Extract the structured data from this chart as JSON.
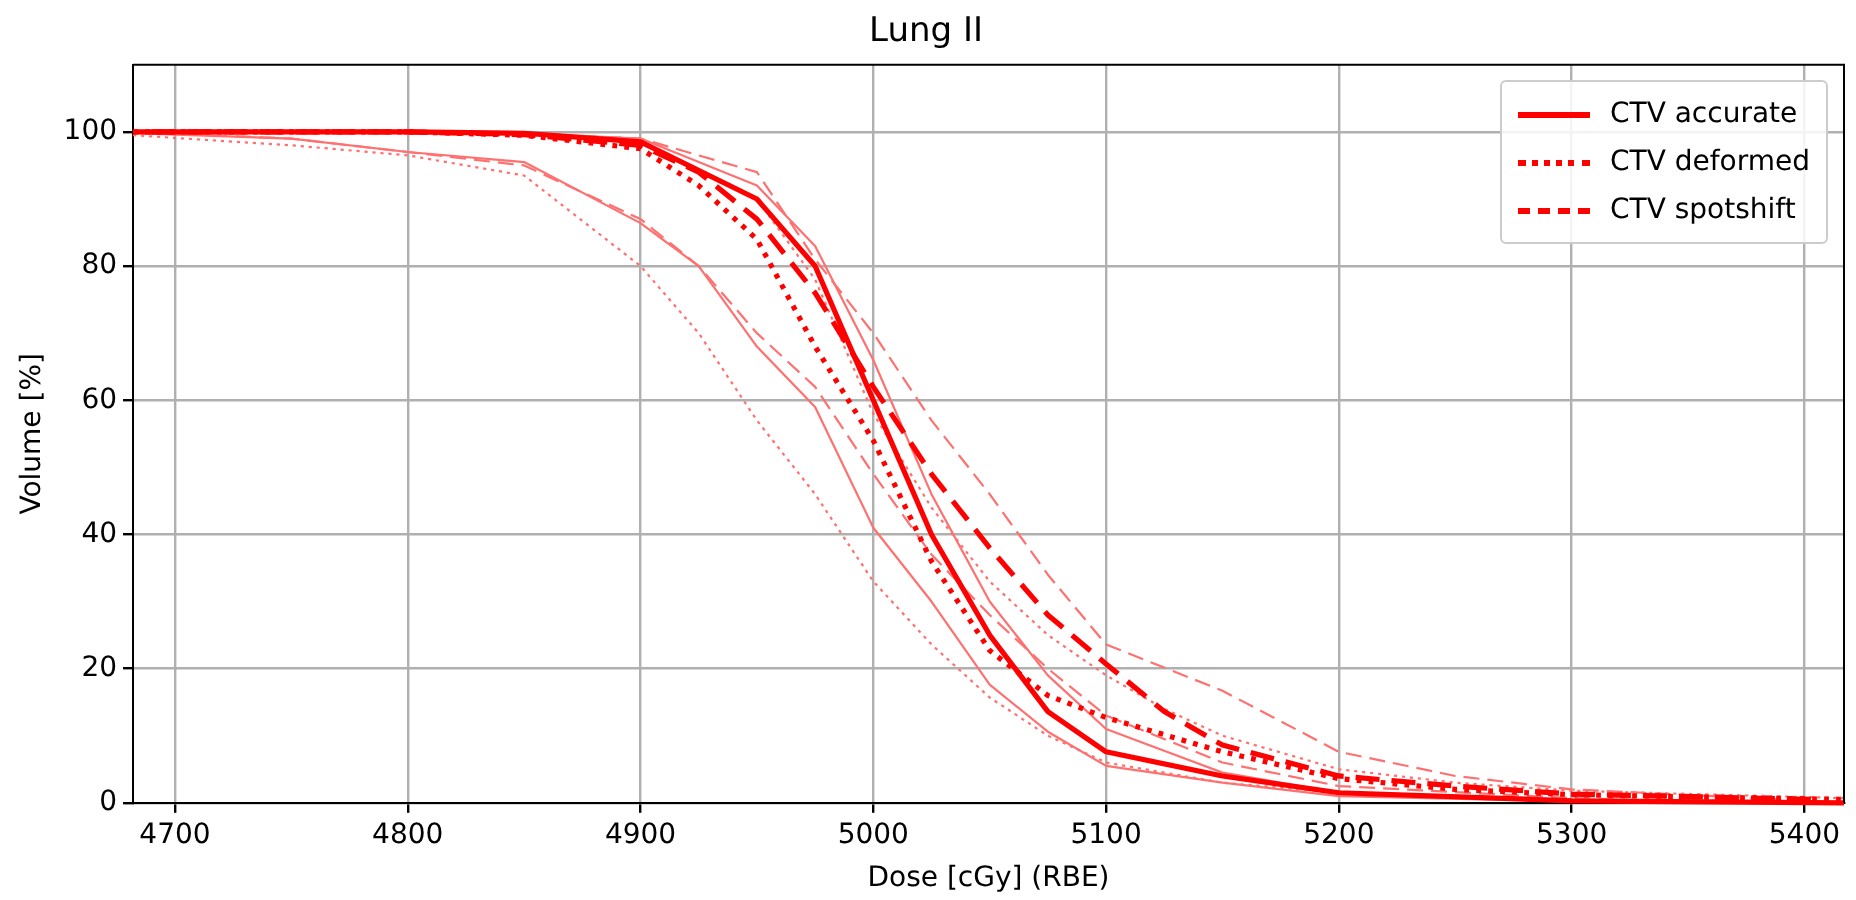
{
  "chart_data": {
    "type": "line",
    "title": "Lung II",
    "xlabel": "Dose [cGy] (RBE)",
    "ylabel": "Volume [%]",
    "xlim": [
      4682,
      5417
    ],
    "ylim": [
      0,
      110
    ],
    "xticks": [
      4700,
      4800,
      4900,
      5000,
      5100,
      5200,
      5300,
      5400
    ],
    "yticks": [
      0,
      20,
      40,
      60,
      80,
      100
    ],
    "grid": true,
    "legend": "top right",
    "marker": "none",
    "series": [
      {
        "name": "CTV accurate",
        "color": "#ff0000",
        "line_style": "solid",
        "x": [
          4682,
          4800,
          4850,
          4900,
          4950,
          4975,
          5000,
          5025,
          5050,
          5075,
          5100,
          5150,
          5200,
          5300,
          5417
        ],
        "values": [
          100,
          100,
          99.8,
          98.5,
          90,
          80,
          60,
          40,
          25,
          13.6,
          7.6,
          4,
          1.5,
          0.3,
          0
        ]
      },
      {
        "name": "CTV deformed",
        "color": "#ff0000",
        "line_style": "dotted",
        "x": [
          4682,
          4800,
          4850,
          4900,
          4925,
          4950,
          4975,
          5000,
          5025,
          5050,
          5075,
          5100,
          5150,
          5200,
          5250,
          5300,
          5417
        ],
        "values": [
          100,
          100,
          99.5,
          97.5,
          92,
          84,
          68,
          54,
          36,
          22.7,
          16,
          12.7,
          7.6,
          3.6,
          2,
          1.2,
          0.5
        ]
      },
      {
        "name": "CTV spotshift",
        "color": "#ff0000",
        "line_style": "dashed",
        "x": [
          4690,
          4800,
          4850,
          4900,
          4925,
          4950,
          4975,
          5000,
          5025,
          5050,
          5075,
          5100,
          5125,
          5150,
          5200,
          5250,
          5300,
          5405
        ],
        "values": [
          100,
          100,
          99.6,
          98,
          94,
          87,
          76,
          62,
          49,
          38,
          28,
          20.7,
          13.6,
          8.6,
          4,
          2.5,
          1.3,
          0.5
        ]
      },
      {
        "color": "#ff7070",
        "line_style": "solid",
        "x": [
          4700,
          4800,
          4850,
          4900,
          4950,
          4975,
          5000,
          5025,
          5050,
          5075,
          5100,
          5150,
          5200,
          5300,
          5380
        ],
        "values": [
          100,
          100,
          99.8,
          99,
          92,
          83,
          66,
          46,
          30,
          19,
          11,
          4.5,
          1.5,
          0.3,
          0
        ]
      },
      {
        "color": "#ff7070",
        "line_style": "solid",
        "x": [
          4682,
          4750,
          4800,
          4850,
          4900,
          4925,
          4950,
          4975,
          5000,
          5025,
          5050,
          5075,
          5100,
          5150,
          5200,
          5300,
          5350
        ],
        "values": [
          99.8,
          99,
          97,
          95.5,
          86.4,
          80,
          68,
          59,
          41,
          30,
          17.6,
          10.6,
          5.5,
          3,
          1,
          0.2,
          0
        ]
      },
      {
        "color": "#ff7070",
        "line_style": "dotted",
        "x": [
          4682,
          4750,
          4800,
          4850,
          4900,
          4925,
          4950,
          4975,
          5000,
          5025,
          5050,
          5075,
          5100,
          5150,
          5200,
          5300,
          5395
        ],
        "values": [
          99.5,
          98,
          96.5,
          93.5,
          80,
          70,
          57,
          46,
          33,
          23.6,
          15.7,
          10,
          6,
          3,
          1.5,
          0.5,
          0.2
        ]
      },
      {
        "color": "#ff7070",
        "line_style": "dotted",
        "x": [
          4710,
          4800,
          4850,
          4900,
          4950,
          4975,
          5000,
          5025,
          5050,
          5075,
          5100,
          5125,
          5150,
          5200,
          5250,
          5300,
          5417
        ],
        "values": [
          100,
          100,
          99.7,
          98.5,
          90,
          78,
          58,
          44,
          33,
          25,
          19,
          14,
          10,
          5,
          3,
          1.8,
          0.7
        ]
      },
      {
        "color": "#ff7070",
        "line_style": "dashed",
        "x": [
          4720,
          4800,
          4850,
          4900,
          4950,
          4975,
          5000,
          5025,
          5050,
          5075,
          5100,
          5150,
          5200,
          5250,
          5300,
          5390
        ],
        "values": [
          100,
          100,
          99.8,
          99,
          94,
          81,
          70,
          57,
          46,
          34,
          23.6,
          16.7,
          7.6,
          4,
          2,
          0.5
        ]
      },
      {
        "color": "#ff7070",
        "line_style": "dashed",
        "x": [
          4695,
          4750,
          4800,
          4850,
          4900,
          4925,
          4950,
          4975,
          5000,
          5025,
          5050,
          5075,
          5100,
          5150,
          5200,
          5300,
          5365
        ],
        "values": [
          99.8,
          99,
          97,
          95,
          87,
          80,
          70,
          62,
          49,
          37,
          28,
          20,
          13,
          6,
          2.5,
          0.7,
          0
        ]
      }
    ]
  }
}
